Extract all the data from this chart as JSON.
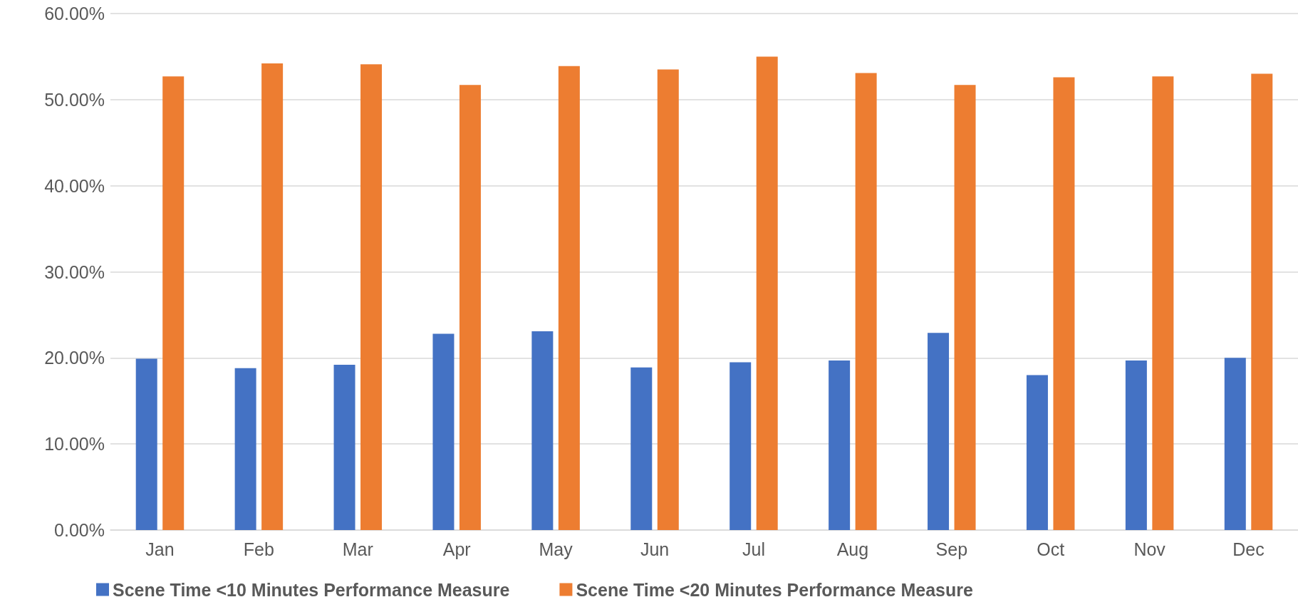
{
  "chart_data": {
    "type": "bar",
    "categories": [
      "Jan",
      "Feb",
      "Mar",
      "Apr",
      "May",
      "Jun",
      "Jul",
      "Aug",
      "Sep",
      "Oct",
      "Nov",
      "Dec"
    ],
    "series": [
      {
        "name": "Scene Time <10 Minutes Performance Measure",
        "color": "#4472c4",
        "values": [
          19.9,
          18.8,
          19.2,
          22.8,
          23.1,
          18.9,
          19.5,
          19.7,
          22.9,
          18.0,
          19.7,
          20.0
        ]
      },
      {
        "name": "Scene Time <20 Minutes Performance Measure",
        "color": "#ed7d31",
        "values": [
          52.7,
          54.2,
          54.1,
          51.7,
          53.9,
          53.5,
          55.0,
          53.1,
          51.7,
          52.6,
          52.7,
          53.0
        ]
      }
    ],
    "ylim": [
      0,
      60
    ],
    "yticks": [
      {
        "value": 0,
        "label": "0.00%"
      },
      {
        "value": 10,
        "label": "10.00%"
      },
      {
        "value": 20,
        "label": "20.00%"
      },
      {
        "value": 30,
        "label": "30.00%"
      },
      {
        "value": 40,
        "label": "40.00%"
      },
      {
        "value": 50,
        "label": "50.00%"
      },
      {
        "value": 60,
        "label": "60.00%"
      }
    ],
    "grid": "y",
    "legend": "bottom"
  }
}
